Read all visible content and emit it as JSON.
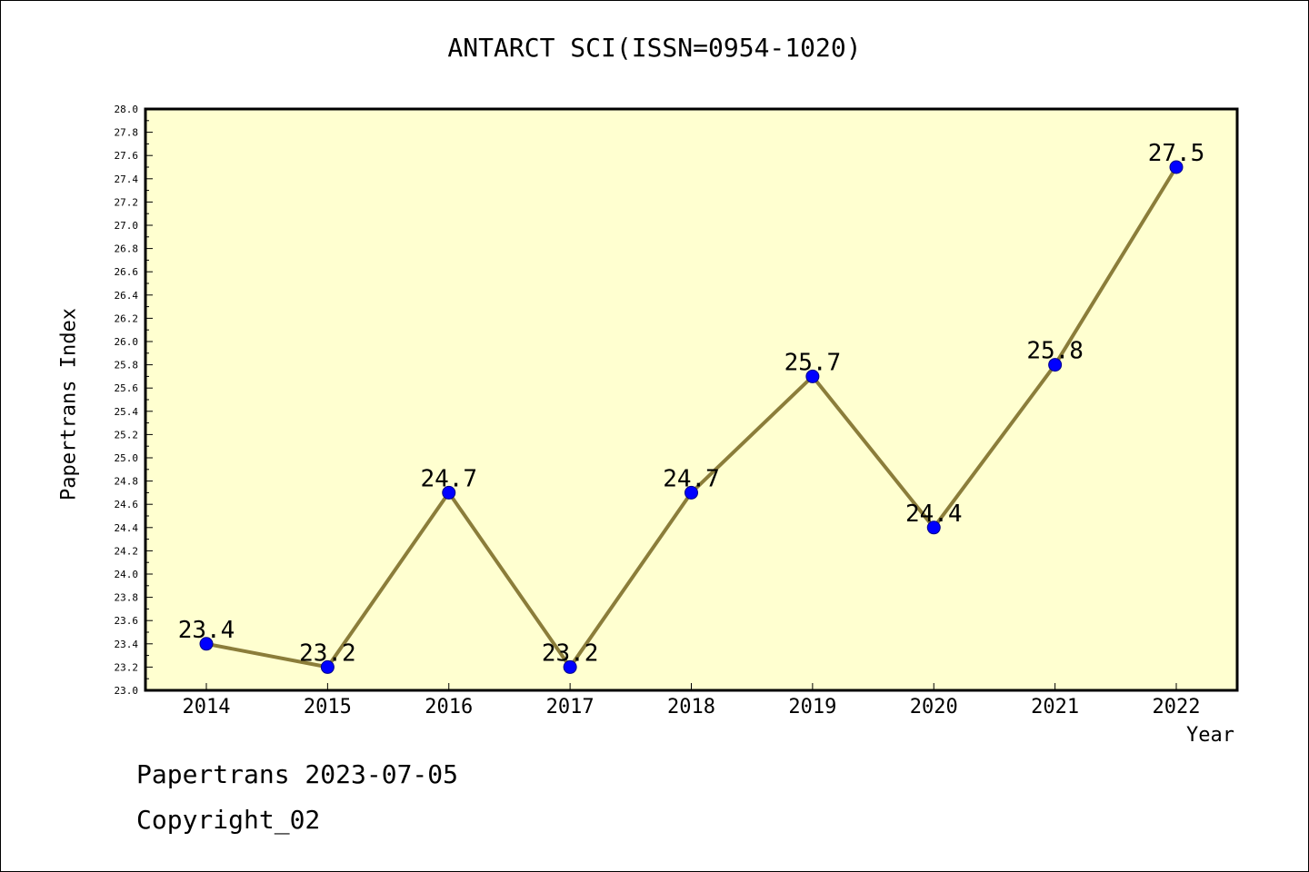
{
  "chart_data": {
    "type": "line",
    "title": "ANTARCT SCI(ISSN=0954-1020)",
    "xlabel": "Year",
    "ylabel": "Papertrans Index",
    "categories": [
      "2014",
      "2015",
      "2016",
      "2017",
      "2018",
      "2019",
      "2020",
      "2021",
      "2022"
    ],
    "series": [
      {
        "values": [
          23.4,
          23.2,
          24.7,
          23.2,
          24.7,
          25.7,
          24.4,
          25.8,
          27.5
        ]
      }
    ],
    "data_labels": [
      "23.4",
      "23.2",
      "24.7",
      "23.2",
      "24.7",
      "25.7",
      "24.4",
      "25.8",
      "27.5"
    ],
    "ylim": [
      23.0,
      28.0
    ],
    "yticks": [
      "23.0",
      "23.2",
      "23.4",
      "23.6",
      "23.8",
      "24.0",
      "24.2",
      "24.4",
      "24.6",
      "24.8",
      "25.0",
      "25.2",
      "25.4",
      "25.6",
      "25.8",
      "26.0",
      "26.2",
      "26.4",
      "26.6",
      "26.8",
      "27.0",
      "27.2",
      "27.4",
      "27.6",
      "27.8",
      "28.0"
    ],
    "grid": false,
    "colors": {
      "plot_background": "#ffffd0",
      "line": "#8b7d3a",
      "marker": "#0000ff"
    }
  },
  "footer": {
    "line1": "Papertrans 2023-07-05",
    "line2": "Copyright_02"
  }
}
